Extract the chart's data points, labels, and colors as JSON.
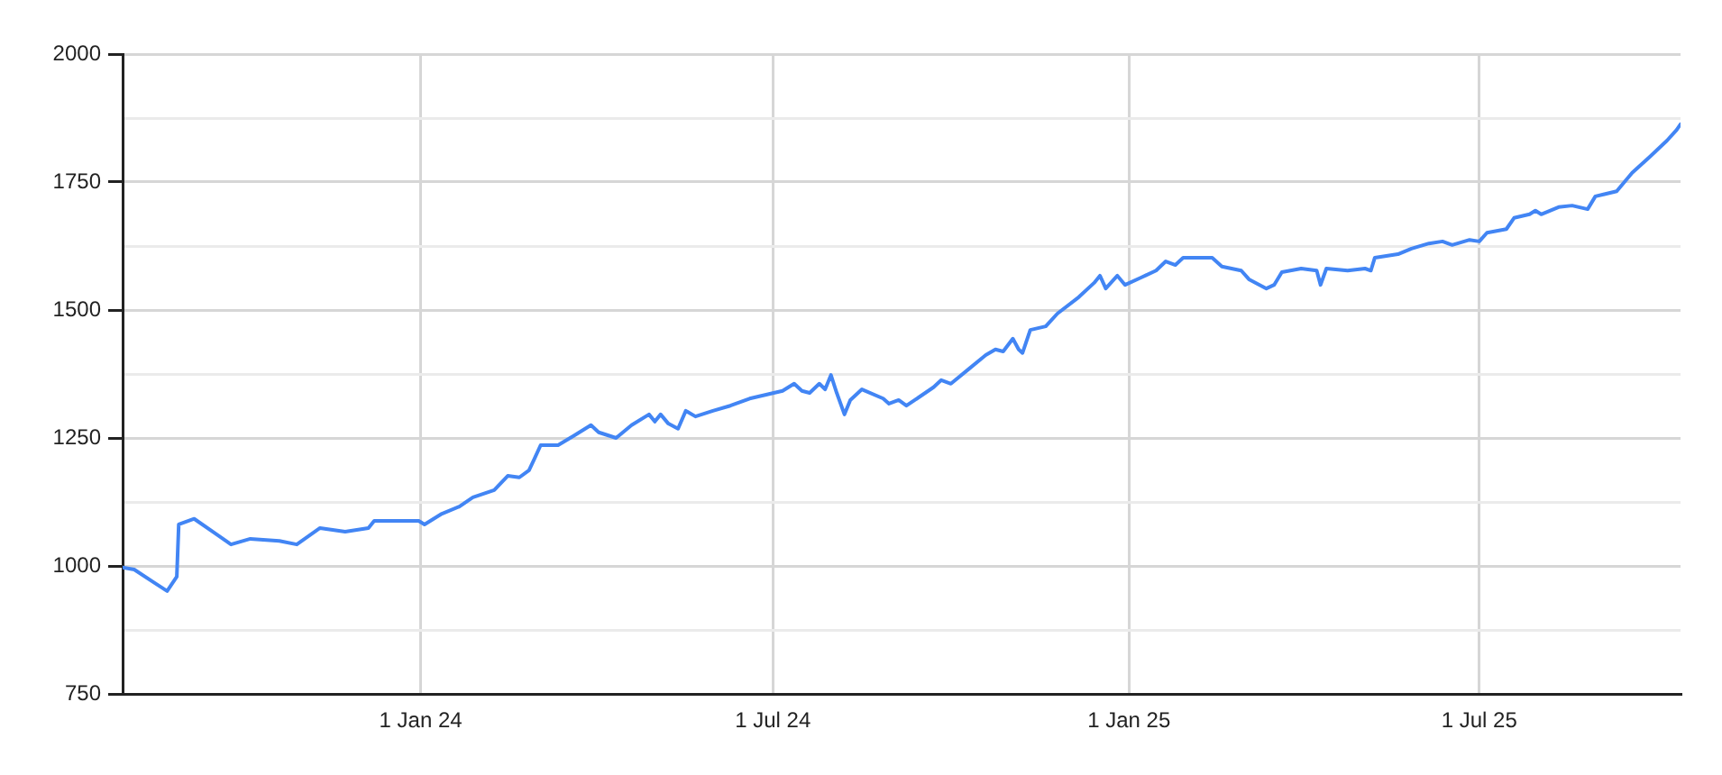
{
  "chart_data": {
    "type": "line",
    "grid": true,
    "legend": false,
    "marker": "none",
    "line_style": "solid",
    "xlim": [
      "2023-07-31",
      "2025-10-13"
    ],
    "xticks": [
      {
        "value": "2024-01-01",
        "label": "1 Jan 24"
      },
      {
        "value": "2024-07-01",
        "label": "1 Jul 24"
      },
      {
        "value": "2025-01-01",
        "label": "1 Jan 25"
      },
      {
        "value": "2025-07-01",
        "label": "1 Jul 25"
      }
    ],
    "ylim": [
      750,
      2000
    ],
    "yticks": [
      750,
      {
        "value": 875,
        "label": null
      },
      1000,
      {
        "value": 1125,
        "label": null
      },
      1250,
      {
        "value": 1375,
        "label": null
      },
      1500,
      {
        "value": 1625,
        "label": null
      },
      1750,
      {
        "value": 1875,
        "label": null
      },
      2000
    ],
    "series": [
      {
        "color": "#4285f4",
        "x": [
          "2023-07-31",
          "2023-08-06",
          "2023-08-16",
          "2023-08-23",
          "2023-08-28",
          "2023-08-29",
          "2023-09-06",
          "2023-09-17",
          "2023-09-25",
          "2023-10-05",
          "2023-10-20",
          "2023-10-29",
          "2023-11-10",
          "2023-11-23",
          "2023-12-05",
          "2023-12-08",
          "2023-12-31",
          "2024-01-03",
          "2024-01-12",
          "2024-01-21",
          "2024-01-28",
          "2024-02-08",
          "2024-02-15",
          "2024-02-21",
          "2024-02-26",
          "2024-02-29",
          "2024-03-03",
          "2024-03-12",
          "2024-03-20",
          "2024-03-29",
          "2024-04-02",
          "2024-04-11",
          "2024-04-19",
          "2024-04-28",
          "2024-05-01",
          "2024-05-04",
          "2024-05-08",
          "2024-05-13",
          "2024-05-17",
          "2024-05-22",
          "2024-05-31",
          "2024-06-09",
          "2024-06-19",
          "2024-06-28",
          "2024-07-06",
          "2024-07-12",
          "2024-07-16",
          "2024-07-20",
          "2024-07-25",
          "2024-07-28",
          "2024-07-31",
          "2024-08-03",
          "2024-08-07",
          "2024-08-10",
          "2024-08-16",
          "2024-08-27",
          "2024-08-30",
          "2024-09-04",
          "2024-09-08",
          "2024-09-22",
          "2024-09-26",
          "2024-10-01",
          "2024-10-10",
          "2024-10-19",
          "2024-10-24",
          "2024-10-28",
          "2024-11-02",
          "2024-11-05",
          "2024-11-07",
          "2024-11-11",
          "2024-11-19",
          "2024-11-25",
          "2024-12-06",
          "2024-12-14",
          "2024-12-17",
          "2024-12-20",
          "2024-12-26",
          "2024-12-30",
          "2025-01-07",
          "2025-01-15",
          "2025-01-20",
          "2025-01-25",
          "2025-01-29",
          "2025-02-06",
          "2025-02-13",
          "2025-02-18",
          "2025-02-28",
          "2025-03-04",
          "2025-03-13",
          "2025-03-17",
          "2025-03-21",
          "2025-03-31",
          "2025-04-08",
          "2025-04-10",
          "2025-04-13",
          "2025-04-24",
          "2025-05-03",
          "2025-05-06",
          "2025-05-08",
          "2025-05-20",
          "2025-05-27",
          "2025-06-05",
          "2025-06-12",
          "2025-06-17",
          "2025-06-26",
          "2025-07-01",
          "2025-07-05",
          "2025-07-15",
          "2025-07-19",
          "2025-07-27",
          "2025-07-30",
          "2025-08-02",
          "2025-08-11",
          "2025-08-18",
          "2025-08-26",
          "2025-08-30",
          "2025-09-10",
          "2025-09-18",
          "2025-09-27",
          "2025-10-06",
          "2025-10-11",
          "2025-10-13"
        ],
        "values": [
          997,
          993,
          968,
          951,
          979,
          1081,
          1092,
          1063,
          1042,
          1053,
          1049,
          1042,
          1074,
          1067,
          1074,
          1088,
          1088,
          1081,
          1102,
          1116,
          1134,
          1148,
          1176,
          1173,
          1187,
          1211,
          1236,
          1236,
          1254,
          1275,
          1261,
          1250,
          1275,
          1296,
          1282,
          1296,
          1278,
          1268,
          1303,
          1292,
          1303,
          1313,
          1327,
          1335,
          1342,
          1356,
          1342,
          1338,
          1356,
          1345,
          1373,
          1338,
          1296,
          1324,
          1345,
          1327,
          1317,
          1324,
          1313,
          1349,
          1363,
          1356,
          1384,
          1412,
          1423,
          1419,
          1444,
          1423,
          1416,
          1461,
          1468,
          1493,
          1525,
          1553,
          1567,
          1542,
          1567,
          1549,
          1563,
          1577,
          1595,
          1588,
          1602,
          1602,
          1602,
          1585,
          1577,
          1560,
          1542,
          1549,
          1574,
          1581,
          1577,
          1549,
          1581,
          1577,
          1581,
          1577,
          1602,
          1609,
          1620,
          1630,
          1634,
          1627,
          1637,
          1634,
          1651,
          1658,
          1680,
          1687,
          1694,
          1687,
          1701,
          1704,
          1697,
          1722,
          1732,
          1768,
          1799,
          1831,
          1852,
          1863
        ]
      }
    ]
  }
}
